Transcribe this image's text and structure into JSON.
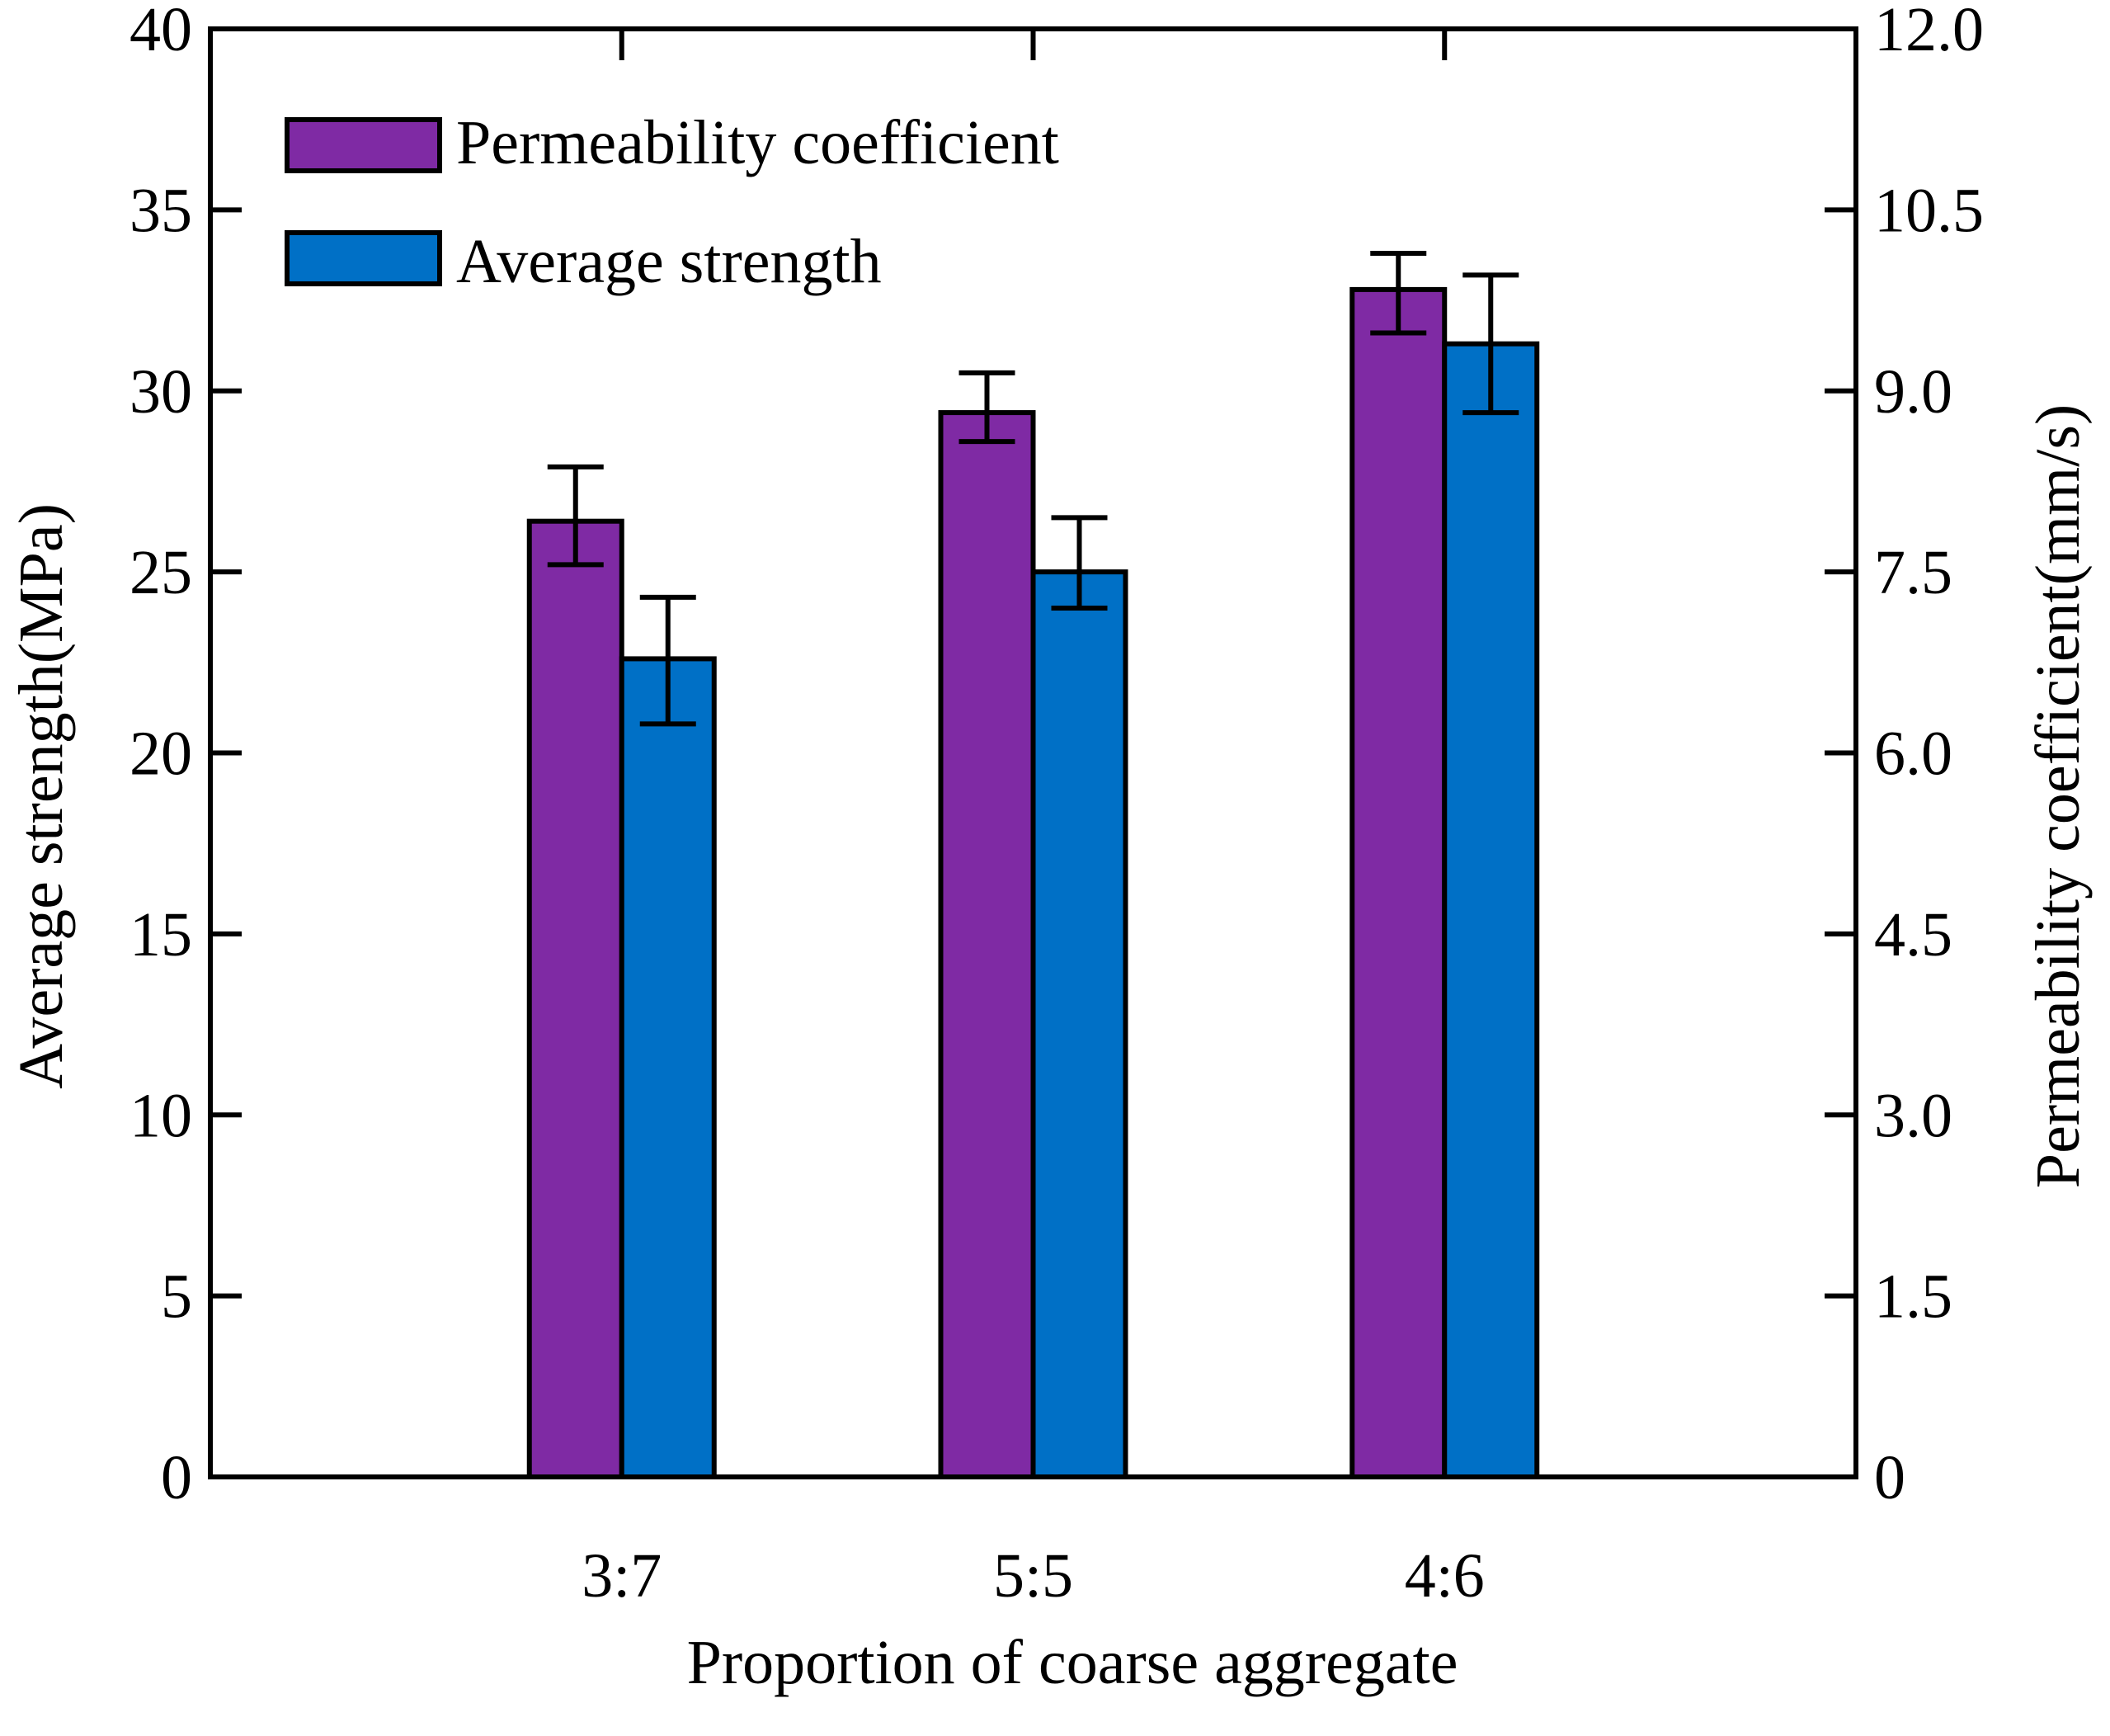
{
  "chart_data": {
    "type": "bar",
    "categories": [
      "3:7",
      "5:5",
      "4:6"
    ],
    "xlabel": "Proportion of coarse aggregate",
    "ylabel_left": "Average strength(MPa)",
    "ylabel_right": "Permeability coefficient(mm/s)",
    "left_axis": {
      "ylim": [
        0,
        40
      ],
      "ticks": [
        0,
        5,
        10,
        15,
        20,
        25,
        30,
        35,
        40
      ],
      "tick_labels": [
        "0",
        "5",
        "10",
        "15",
        "20",
        "25",
        "30",
        "35",
        "40"
      ]
    },
    "right_axis": {
      "ylim": [
        0,
        12.0
      ],
      "ticks": [
        0,
        1.5,
        3.0,
        4.5,
        6.0,
        7.5,
        9.0,
        10.5,
        12.0
      ],
      "tick_labels": [
        "0",
        "1.5",
        "3.0",
        "4.5",
        "6.0",
        "7.5",
        "9.0",
        "10.5",
        "12.0"
      ]
    },
    "series": [
      {
        "name": "Permeability coefficient",
        "axis": "right",
        "color": "#7f2aa4",
        "values": [
          7.92,
          8.82,
          9.84
        ],
        "error_low": [
          7.56,
          8.58,
          9.48
        ],
        "error_high": [
          8.37,
          9.15,
          10.14
        ]
      },
      {
        "name": "Average strength",
        "axis": "left",
        "color": "#0070c6",
        "values": [
          22.6,
          25.0,
          31.3
        ],
        "error_low": [
          20.8,
          24.0,
          29.4
        ],
        "error_high": [
          24.3,
          26.5,
          33.2
        ]
      }
    ],
    "legend": {
      "position": "top-left",
      "entries": [
        "Permeability coefficient",
        "Average strength"
      ]
    },
    "grid": false
  }
}
